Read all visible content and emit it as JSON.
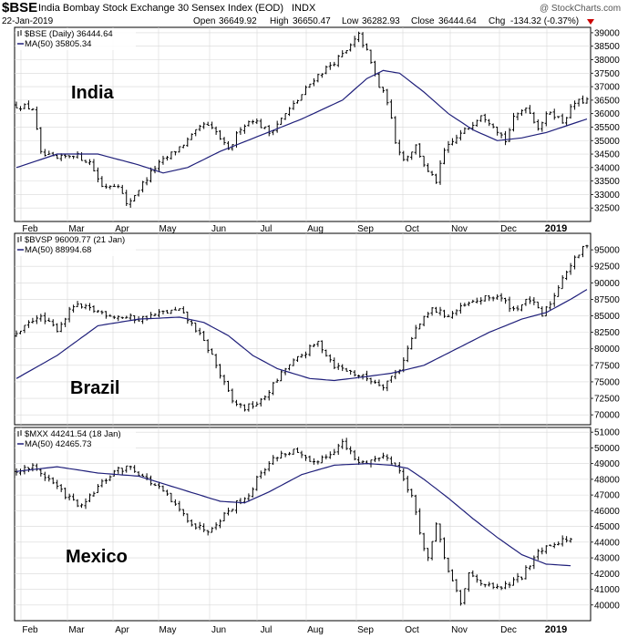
{
  "header": {
    "ticker": "$BSE",
    "name": "India Bombay Stock Exchange 30 Sensex Index (EOD)",
    "exchange": "INDX",
    "date": "22-Jan-2019",
    "open_label": "Open",
    "open": "36649.92",
    "high_label": "High",
    "high": "36650.47",
    "low_label": "Low",
    "low": "36282.93",
    "close_label": "Close",
    "close": "36444.64",
    "chg_label": "Chg",
    "chg": "-134.32 (-0.37%)",
    "watermark": "@ StockCharts.com"
  },
  "colors": {
    "price": "#000000",
    "ma": "#1f1f7a",
    "grid": "#d8d8d8",
    "chg": "#cc0000"
  },
  "chart_data": [
    {
      "type": "ohlc",
      "panel": "india",
      "country_label": "India",
      "legend_price": "$BSE (Daily) 36444.64",
      "legend_ma": "MA(50) 35805.34",
      "ylim": [
        32000,
        39200
      ],
      "yticks": [
        "32500",
        "33000",
        "33500",
        "34000",
        "34500",
        "35000",
        "35500",
        "36000",
        "36500",
        "37000",
        "37500",
        "38000",
        "38500",
        "39000"
      ],
      "x_months": [
        "Feb",
        "Mar",
        "Apr",
        "May",
        "Jun",
        "Jul",
        "Aug",
        "Sep",
        "Oct",
        "Nov",
        "Dec",
        "2019"
      ],
      "price_anchors": [
        [
          0,
          36300
        ],
        [
          4,
          36200
        ],
        [
          6,
          34500
        ],
        [
          10,
          34300
        ],
        [
          14,
          34500
        ],
        [
          18,
          34200
        ],
        [
          21,
          33300
        ],
        [
          25,
          33400
        ],
        [
          27,
          32600
        ],
        [
          30,
          33200
        ],
        [
          34,
          34000
        ],
        [
          38,
          34500
        ],
        [
          42,
          35000
        ],
        [
          46,
          35600
        ],
        [
          49,
          35300
        ],
        [
          52,
          34600
        ],
        [
          55,
          35500
        ],
        [
          58,
          35800
        ],
        [
          62,
          35300
        ],
        [
          65,
          35800
        ],
        [
          69,
          36500
        ],
        [
          73,
          37300
        ],
        [
          77,
          37800
        ],
        [
          81,
          38300
        ],
        [
          84,
          38900
        ],
        [
          86,
          38300
        ],
        [
          89,
          37000
        ],
        [
          91,
          36500
        ],
        [
          93,
          35000
        ],
        [
          95,
          34300
        ],
        [
          98,
          34800
        ],
        [
          101,
          33800
        ],
        [
          103,
          33500
        ],
        [
          105,
          34600
        ],
        [
          108,
          35100
        ],
        [
          111,
          35500
        ],
        [
          114,
          36000
        ],
        [
          117,
          35600
        ],
        [
          120,
          35000
        ],
        [
          122,
          35800
        ],
        [
          125,
          36300
        ],
        [
          128,
          35500
        ],
        [
          131,
          36100
        ],
        [
          134,
          35700
        ],
        [
          137,
          36400
        ],
        [
          140,
          36500
        ]
      ],
      "ma_anchors": [
        [
          0,
          34000
        ],
        [
          10,
          34500
        ],
        [
          20,
          34500
        ],
        [
          30,
          34100
        ],
        [
          36,
          33800
        ],
        [
          42,
          34000
        ],
        [
          50,
          34600
        ],
        [
          60,
          35200
        ],
        [
          70,
          35800
        ],
        [
          80,
          36500
        ],
        [
          86,
          37300
        ],
        [
          90,
          37600
        ],
        [
          94,
          37500
        ],
        [
          100,
          36800
        ],
        [
          106,
          36000
        ],
        [
          112,
          35400
        ],
        [
          118,
          35000
        ],
        [
          124,
          35100
        ],
        [
          130,
          35300
        ],
        [
          136,
          35600
        ],
        [
          140,
          35800
        ]
      ]
    },
    {
      "type": "ohlc",
      "panel": "brazil",
      "country_label": "Brazil",
      "legend_price": "$BVSP 96009.77 (21 Jan)",
      "legend_ma": "MA(50) 88994.68",
      "ylim": [
        68500,
        97500
      ],
      "yticks": [
        "70000",
        "72500",
        "75000",
        "77500",
        "80000",
        "82500",
        "85000",
        "87500",
        "90000",
        "92500",
        "95000"
      ],
      "price_anchors": [
        [
          0,
          82000
        ],
        [
          5,
          85000
        ],
        [
          10,
          83000
        ],
        [
          14,
          86500
        ],
        [
          18,
          86000
        ],
        [
          24,
          85000
        ],
        [
          30,
          84500
        ],
        [
          36,
          85500
        ],
        [
          40,
          85800
        ],
        [
          44,
          83000
        ],
        [
          48,
          79000
        ],
        [
          50,
          76000
        ],
        [
          53,
          72000
        ],
        [
          56,
          71000
        ],
        [
          60,
          72000
        ],
        [
          63,
          74500
        ],
        [
          66,
          77000
        ],
        [
          70,
          79000
        ],
        [
          74,
          81000
        ],
        [
          78,
          77500
        ],
        [
          82,
          76500
        ],
        [
          86,
          75500
        ],
        [
          90,
          74500
        ],
        [
          94,
          77000
        ],
        [
          98,
          83000
        ],
        [
          102,
          86000
        ],
        [
          106,
          85000
        ],
        [
          110,
          86500
        ],
        [
          114,
          87500
        ],
        [
          118,
          88000
        ],
        [
          122,
          86000
        ],
        [
          126,
          87500
        ],
        [
          129,
          85000
        ],
        [
          132,
          88000
        ],
        [
          134,
          91000
        ],
        [
          137,
          93500
        ],
        [
          140,
          96000
        ]
      ],
      "ma_anchors": [
        [
          0,
          75500
        ],
        [
          10,
          79000
        ],
        [
          20,
          83500
        ],
        [
          30,
          84500
        ],
        [
          40,
          84800
        ],
        [
          46,
          84000
        ],
        [
          52,
          82000
        ],
        [
          58,
          79000
        ],
        [
          64,
          77000
        ],
        [
          72,
          75500
        ],
        [
          78,
          75200
        ],
        [
          86,
          75800
        ],
        [
          92,
          76300
        ],
        [
          100,
          77500
        ],
        [
          108,
          80000
        ],
        [
          116,
          82500
        ],
        [
          124,
          84500
        ],
        [
          130,
          85500
        ],
        [
          136,
          87500
        ],
        [
          140,
          89000
        ]
      ]
    },
    {
      "type": "ohlc",
      "panel": "mexico",
      "country_label": "Mexico",
      "legend_price": "$MXX 44241.54 (18 Jan)",
      "legend_ma": "MA(50) 42465.73",
      "ylim": [
        39000,
        51300
      ],
      "yticks": [
        "40000",
        "41000",
        "42000",
        "43000",
        "44000",
        "45000",
        "46000",
        "47000",
        "48000",
        "49000",
        "50000",
        "51000"
      ],
      "price_anchors": [
        [
          0,
          48500
        ],
        [
          4,
          48800
        ],
        [
          8,
          48000
        ],
        [
          12,
          47000
        ],
        [
          16,
          46200
        ],
        [
          20,
          47500
        ],
        [
          24,
          48500
        ],
        [
          28,
          48800
        ],
        [
          32,
          48000
        ],
        [
          36,
          47200
        ],
        [
          40,
          46000
        ],
        [
          44,
          45000
        ],
        [
          47,
          44800
        ],
        [
          50,
          45500
        ],
        [
          54,
          46500
        ],
        [
          57,
          47000
        ],
        [
          60,
          48500
        ],
        [
          64,
          49500
        ],
        [
          68,
          49800
        ],
        [
          72,
          49000
        ],
        [
          76,
          49500
        ],
        [
          80,
          50300
        ],
        [
          84,
          49000
        ],
        [
          88,
          49300
        ],
        [
          91,
          49500
        ],
        [
          94,
          48500
        ],
        [
          97,
          47000
        ],
        [
          99,
          44500
        ],
        [
          101,
          43000
        ],
        [
          103,
          45000
        ],
        [
          105,
          43000
        ],
        [
          107,
          41500
        ],
        [
          109,
          40000
        ],
        [
          111,
          42000
        ],
        [
          114,
          41500
        ],
        [
          117,
          41000
        ],
        [
          120,
          41200
        ],
        [
          124,
          41800
        ],
        [
          128,
          43500
        ],
        [
          132,
          44000
        ],
        [
          136,
          44200
        ]
      ],
      "ma_anchors": [
        [
          0,
          48500
        ],
        [
          10,
          48800
        ],
        [
          20,
          48400
        ],
        [
          30,
          48200
        ],
        [
          40,
          47400
        ],
        [
          50,
          46600
        ],
        [
          56,
          46500
        ],
        [
          62,
          47200
        ],
        [
          70,
          48300
        ],
        [
          78,
          48900
        ],
        [
          86,
          49000
        ],
        [
          92,
          48900
        ],
        [
          96,
          48700
        ],
        [
          100,
          48000
        ],
        [
          106,
          46800
        ],
        [
          112,
          45500
        ],
        [
          118,
          44300
        ],
        [
          124,
          43200
        ],
        [
          130,
          42600
        ],
        [
          136,
          42500
        ]
      ]
    }
  ]
}
